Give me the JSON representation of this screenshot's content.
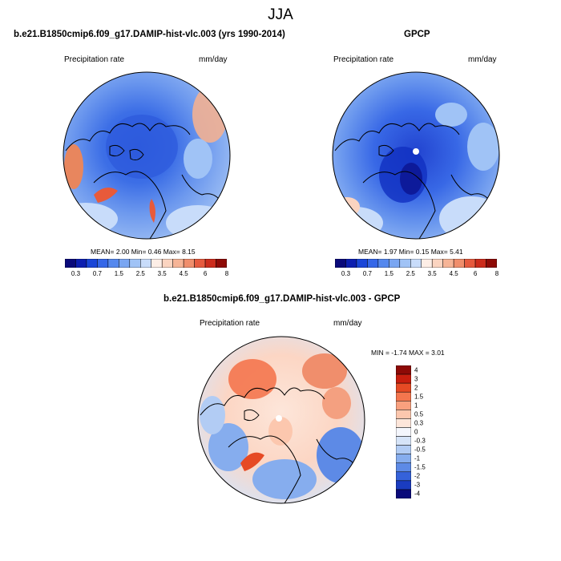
{
  "figure": {
    "season_title": "JJA"
  },
  "panels": {
    "model": {
      "title": "b.e21.B1850cmip6.f09_g17.DAMIP-hist-vlc.003 (yrs 1990-2014)",
      "left_label": "Precipitation rate",
      "right_label": "mm/day",
      "stats_text": "MEAN=   2.00  Min=   0.46  Max=   8.15"
    },
    "obs": {
      "title": "GPCP",
      "left_label": "Precipitation rate",
      "right_label": "mm/day",
      "stats_text": "MEAN=   1.97  Min=   0.15  Max=   5.41"
    },
    "diff": {
      "title": "b.e21.B1850cmip6.f09_g17.DAMIP-hist-vlc.003 - GPCP",
      "left_label": "Precipitation rate",
      "right_label": "mm/day",
      "stats_text": "MIN =  -1.74 MAX =   3.01"
    }
  },
  "colorbars": {
    "abs": {
      "colors": [
        "#0a0a7a",
        "#0d1fb0",
        "#1a46d8",
        "#3567e8",
        "#5588ee",
        "#7aa6f2",
        "#a0c3f6",
        "#c8dcfa",
        "#fdeee6",
        "#fbd4c0",
        "#f6b496",
        "#f08e6c",
        "#e65a3e",
        "#cc2c1c",
        "#8e0a06"
      ],
      "tick_labels": [
        "0.3",
        "0.7",
        "1.5",
        "2.5",
        "3.5",
        "4.5",
        "6",
        "8"
      ]
    },
    "diff": {
      "colors": [
        "#8e0a06",
        "#c81e0e",
        "#e64a24",
        "#f4764e",
        "#f9a07e",
        "#fcc7ae",
        "#fde6da",
        "#f4f6fc",
        "#d6e4f8",
        "#b2ccf4",
        "#86adee",
        "#5d8ae6",
        "#3562da",
        "#1a3cc0",
        "#0a0a7a"
      ],
      "tick_labels": [
        "4",
        "3",
        "2",
        "1.5",
        "1",
        "0.5",
        "0.3",
        "0",
        "-0.3",
        "-0.5",
        "-1",
        "-1.5",
        "-2",
        "-3",
        "-4"
      ]
    }
  }
}
